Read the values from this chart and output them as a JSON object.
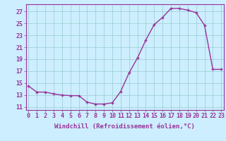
{
  "x": [
    0,
    1,
    2,
    3,
    4,
    5,
    6,
    7,
    8,
    9,
    10,
    11,
    12,
    13,
    14,
    15,
    16,
    17,
    18,
    19,
    20,
    21,
    22,
    23
  ],
  "y": [
    14.5,
    13.5,
    13.5,
    13.2,
    13.0,
    12.9,
    12.9,
    11.8,
    11.5,
    11.5,
    11.7,
    13.6,
    16.7,
    19.2,
    22.2,
    24.8,
    26.0,
    27.5,
    27.5,
    27.2,
    26.8,
    24.7,
    17.3,
    17.3
  ],
  "x_ticks": [
    0,
    1,
    2,
    3,
    4,
    5,
    6,
    7,
    8,
    9,
    10,
    11,
    12,
    13,
    14,
    15,
    16,
    17,
    18,
    19,
    20,
    21,
    22,
    23
  ],
  "y_ticks": [
    11,
    13,
    15,
    17,
    19,
    21,
    23,
    25,
    27
  ],
  "xlim": [
    -0.3,
    23.3
  ],
  "ylim": [
    10.5,
    28.2
  ],
  "xlabel": "Windchill (Refroidissement éolien,°C)",
  "line_color": "#993399",
  "marker": "+",
  "bg_color": "#cceeff",
  "grid_color": "#99cccc",
  "tick_color": "#993399",
  "label_color": "#993399",
  "font_size": 6.0,
  "xlabel_fontsize": 6.5,
  "lw": 1.0,
  "markersize": 3.5,
  "markeredgewidth": 1.0
}
